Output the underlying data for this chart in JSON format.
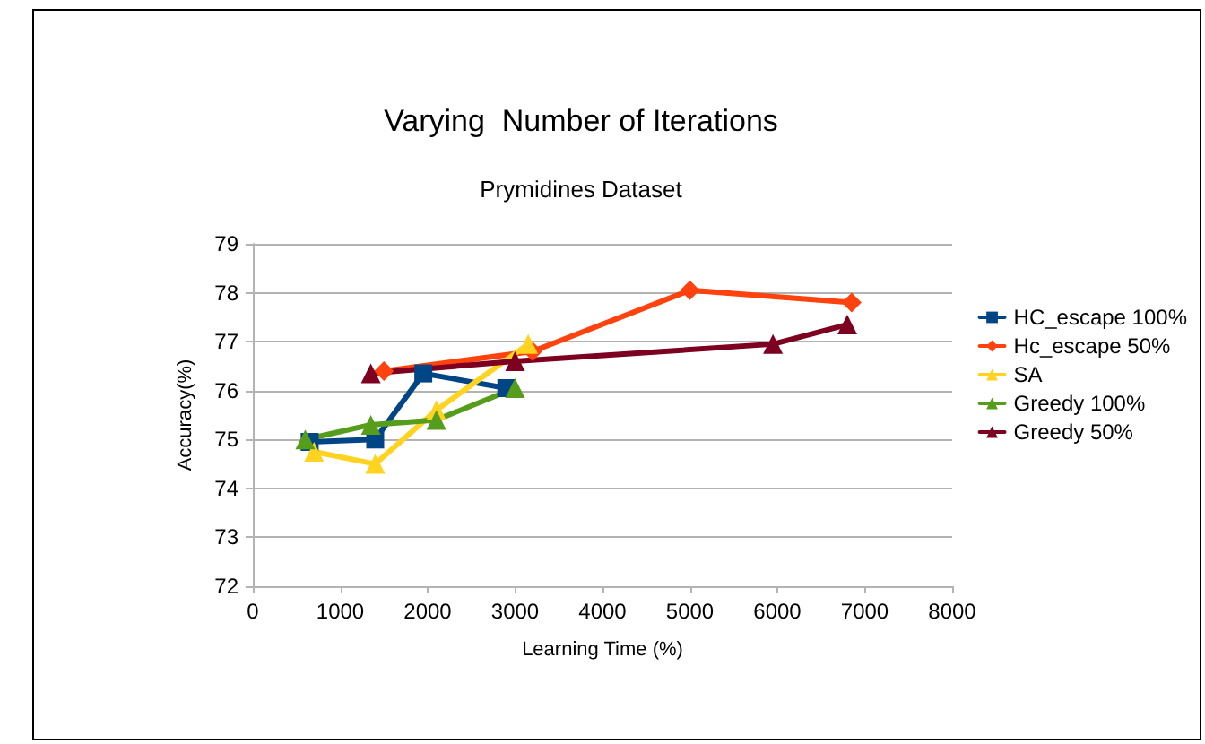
{
  "chart_data": {
    "type": "line",
    "title": "Varying  Number of Iterations",
    "subtitle": "Prymidines Dataset",
    "xlabel": "Learning Time (%)",
    "ylabel": "Accuracy(%)",
    "xlim": [
      0,
      8000
    ],
    "xticks": [
      0,
      1000,
      2000,
      3000,
      4000,
      5000,
      6000,
      7000,
      8000
    ],
    "ylim": [
      72,
      79
    ],
    "yticks": [
      72,
      73,
      74,
      75,
      76,
      77,
      78,
      79
    ],
    "grid": "y",
    "legend": "right",
    "line_style": "solid",
    "series": [
      {
        "name": "HC_escape 100%",
        "color": "#004586",
        "marker": "square",
        "x": [
          650,
          1400,
          1950,
          2900
        ],
        "values": [
          74.95,
          75.0,
          76.35,
          76.05
        ]
      },
      {
        "name": "Hc_escape 50%",
        "color": "#ff420e",
        "marker": "diamond",
        "x": [
          1500,
          3200,
          5000,
          6850
        ],
        "values": [
          76.4,
          76.8,
          78.05,
          77.8
        ]
      },
      {
        "name": "SA",
        "color": "#ffd320",
        "marker": "triangle",
        "x": [
          700,
          1400,
          2100,
          3150
        ],
        "values": [
          74.75,
          74.5,
          75.6,
          76.95
        ]
      },
      {
        "name": "Greedy 100%",
        "color": "#579d1c",
        "marker": "triangle",
        "x": [
          600,
          1350,
          2100,
          3000
        ],
        "values": [
          75.0,
          75.3,
          75.4,
          76.05
        ]
      },
      {
        "name": "Greedy 50%",
        "color": "#7e0021",
        "marker": "triangle",
        "x": [
          1350,
          3000,
          5950,
          6800
        ],
        "values": [
          76.35,
          76.6,
          76.95,
          77.35
        ]
      }
    ]
  }
}
